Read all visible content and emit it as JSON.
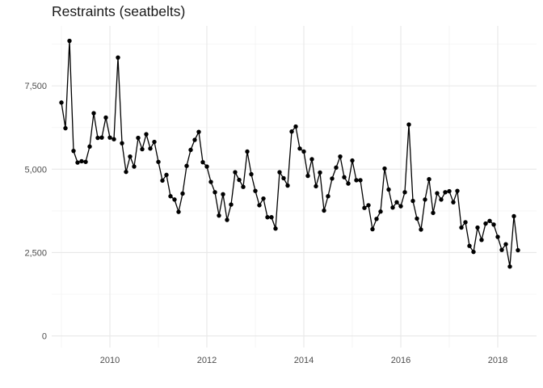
{
  "chart_data": {
    "type": "line",
    "title": "Restraints (seatbelts)",
    "xlabel": "",
    "ylabel": "",
    "xlim": [
      2008.8,
      2018.8
    ],
    "ylim": [
      -350,
      9300
    ],
    "x_ticks": [
      2010,
      2012,
      2014,
      2016,
      2018
    ],
    "x_tick_labels": [
      "2010",
      "2012",
      "2014",
      "2016",
      "2018"
    ],
    "y_ticks": [
      0,
      2500,
      5000,
      7500
    ],
    "y_tick_labels": [
      "0",
      "2,500",
      "5,000",
      "7,500"
    ],
    "grid": true,
    "markers": true,
    "series": [
      {
        "name": "",
        "color": "#000000",
        "x": [
          2009.0,
          2009.0833,
          2009.1667,
          2009.25,
          2009.3333,
          2009.4167,
          2009.5,
          2009.5833,
          2009.6667,
          2009.75,
          2009.8333,
          2009.9167,
          2010.0,
          2010.0833,
          2010.1667,
          2010.25,
          2010.3333,
          2010.4167,
          2010.5,
          2010.5833,
          2010.6667,
          2010.75,
          2010.8333,
          2010.9167,
          2011.0,
          2011.0833,
          2011.1667,
          2011.25,
          2011.3333,
          2011.4167,
          2011.5,
          2011.5833,
          2011.6667,
          2011.75,
          2011.8333,
          2011.9167,
          2012.0,
          2012.0833,
          2012.1667,
          2012.25,
          2012.3333,
          2012.4167,
          2012.5,
          2012.5833,
          2012.6667,
          2012.75,
          2012.8333,
          2012.9167,
          2013.0,
          2013.0833,
          2013.1667,
          2013.25,
          2013.3333,
          2013.4167,
          2013.5,
          2013.5833,
          2013.6667,
          2013.75,
          2013.8333,
          2013.9167,
          2014.0,
          2014.0833,
          2014.1667,
          2014.25,
          2014.3333,
          2014.4167,
          2014.5,
          2014.5833,
          2014.6667,
          2014.75,
          2014.8333,
          2014.9167,
          2015.0,
          2015.0833,
          2015.1667,
          2015.25,
          2015.3333,
          2015.4167,
          2015.5,
          2015.5833,
          2015.6667,
          2015.75,
          2015.8333,
          2015.9167,
          2016.0,
          2016.0833,
          2016.1667,
          2016.25,
          2016.3333,
          2016.4167,
          2016.5,
          2016.5833,
          2016.6667,
          2016.75,
          2016.8333,
          2016.9167,
          2017.0,
          2017.0833,
          2017.1667,
          2017.25,
          2017.3333,
          2017.4167,
          2017.5,
          2017.5833,
          2017.6667,
          2017.75,
          2017.8333,
          2017.9167,
          2018.0,
          2018.0833,
          2018.1667,
          2018.25,
          2018.3333,
          2018.4167
        ],
        "y": [
          7000,
          6230,
          8850,
          5550,
          5200,
          5240,
          5220,
          5680,
          6680,
          5940,
          5950,
          6550,
          5950,
          5900,
          8350,
          5780,
          4920,
          5380,
          5080,
          5940,
          5600,
          6050,
          5620,
          5820,
          5220,
          4660,
          4830,
          4190,
          4090,
          3720,
          4270,
          5100,
          5580,
          5880,
          6120,
          5210,
          5080,
          4620,
          4310,
          3610,
          4250,
          3480,
          3940,
          4910,
          4680,
          4470,
          5530,
          4850,
          4350,
          3920,
          4120,
          3560,
          3560,
          3220,
          4910,
          4730,
          4510,
          6130,
          6280,
          5620,
          5530,
          4800,
          5300,
          4490,
          4900,
          3760,
          4190,
          4720,
          5050,
          5380,
          4760,
          4570,
          5260,
          4670,
          4670,
          3840,
          3920,
          3200,
          3510,
          3730,
          5020,
          4390,
          3850,
          4010,
          3890,
          4310,
          6340,
          4050,
          3520,
          3190,
          4090,
          4700,
          3690,
          4280,
          4090,
          4310,
          4340,
          4010,
          4350,
          3250,
          3410,
          2700,
          2520,
          3250,
          2880,
          3370,
          3450,
          3340,
          2970,
          2580,
          2750,
          2080,
          3590,
          2570
        ]
      }
    ]
  }
}
